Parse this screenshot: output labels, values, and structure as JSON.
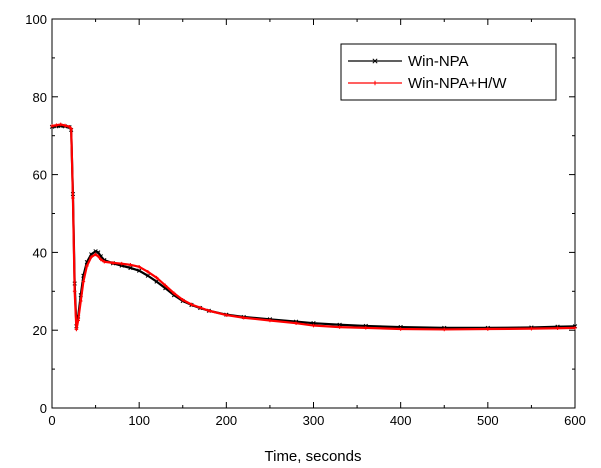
{
  "chart_data": {
    "type": "line",
    "title": "",
    "xlabel": "Time, seconds",
    "ylabel": "",
    "xlim": [
      0,
      600
    ],
    "ylim": [
      0,
      100
    ],
    "xticks": [
      0,
      100,
      200,
      300,
      400,
      500,
      600
    ],
    "yticks": [
      0,
      20,
      40,
      60,
      80,
      100
    ],
    "xtick_labels": [
      "0",
      "100",
      "200",
      "300",
      "400",
      "500",
      "600"
    ],
    "ytick_labels": [
      "0",
      "20",
      "40",
      "60",
      "80",
      "100"
    ],
    "grid": false,
    "legend_position": "top-right",
    "series": [
      {
        "name": "Win-NPA",
        "color": "#000000",
        "marker": "x",
        "x": [
          0,
          5,
          10,
          15,
          20,
          22,
          24,
          26,
          28,
          30,
          33,
          36,
          40,
          45,
          50,
          53,
          56,
          60,
          70,
          80,
          90,
          100,
          110,
          120,
          130,
          140,
          150,
          160,
          170,
          180,
          200,
          220,
          250,
          280,
          300,
          330,
          360,
          400,
          450,
          500,
          550,
          580,
          600
        ],
        "y": [
          72.3,
          72.4,
          72.5,
          72.4,
          72.2,
          71.5,
          55.0,
          32.0,
          21.0,
          23.5,
          29.0,
          34.0,
          37.5,
          39.5,
          40.3,
          40.0,
          39.0,
          38.0,
          37.2,
          36.6,
          36.0,
          35.3,
          34.0,
          32.5,
          30.8,
          29.0,
          27.5,
          26.5,
          25.7,
          25.0,
          24.0,
          23.4,
          22.8,
          22.2,
          21.8,
          21.4,
          21.1,
          20.8,
          20.6,
          20.6,
          20.7,
          20.9,
          21.0
        ]
      },
      {
        "name": "Win-NPA+H/W",
        "color": "#ff0000",
        "marker": "+",
        "x": [
          0,
          5,
          10,
          15,
          20,
          22,
          24,
          26,
          28,
          30,
          33,
          36,
          40,
          45,
          50,
          53,
          56,
          60,
          70,
          80,
          90,
          100,
          110,
          120,
          130,
          140,
          150,
          160,
          170,
          180,
          200,
          220,
          250,
          280,
          300,
          330,
          360,
          400,
          450,
          500,
          550,
          580,
          600
        ],
        "y": [
          72.5,
          72.7,
          72.9,
          72.6,
          72.3,
          71.8,
          54.0,
          30.0,
          20.2,
          22.5,
          27.5,
          32.5,
          36.5,
          38.8,
          39.5,
          39.0,
          38.2,
          37.6,
          37.3,
          37.1,
          36.8,
          36.3,
          35.0,
          33.5,
          31.5,
          29.5,
          27.8,
          26.6,
          25.8,
          25.0,
          23.9,
          23.2,
          22.5,
          21.8,
          21.2,
          20.8,
          20.6,
          20.3,
          20.2,
          20.3,
          20.4,
          20.5,
          20.6
        ]
      }
    ]
  }
}
